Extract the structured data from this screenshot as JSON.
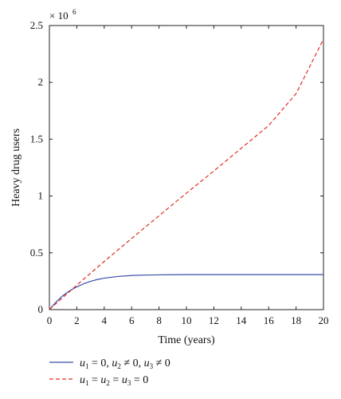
{
  "chart_data": {
    "type": "line",
    "xlabel": "Time (years)",
    "ylabel": "Heavy drug users",
    "y_multiplier": "× 10^6",
    "xlim": [
      0,
      20
    ],
    "ylim": [
      0,
      2.5
    ],
    "x_ticks": [
      0,
      2,
      4,
      6,
      8,
      10,
      12,
      14,
      16,
      18,
      20
    ],
    "y_ticks": [
      0,
      0.5,
      1,
      1.5,
      2,
      2.5
    ],
    "x_tick_labels": [
      "0",
      "2",
      "4",
      "6",
      "8",
      "10",
      "12",
      "14",
      "16",
      "18",
      "20"
    ],
    "y_tick_labels": [
      "0",
      "0.5",
      "1",
      "1.5",
      "2",
      "2.5"
    ],
    "grid": false,
    "legend_placement": "bottom",
    "x": [
      0,
      0.25,
      0.5,
      0.75,
      1,
      1.5,
      2,
      2.5,
      3,
      3.5,
      4,
      5,
      6,
      7,
      8,
      9,
      10,
      12,
      14,
      16,
      18,
      20
    ],
    "series": [
      {
        "legend": "u1 = 0, u2 ≠ 0, u3 ≠ 0",
        "color": "#3b4fa8",
        "style": "solid",
        "values": [
          0,
          0.035,
          0.068,
          0.098,
          0.125,
          0.168,
          0.2,
          0.228,
          0.249,
          0.265,
          0.277,
          0.292,
          0.3,
          0.304,
          0.306,
          0.307,
          0.308,
          0.308,
          0.308,
          0.308,
          0.308,
          0.308
        ]
      },
      {
        "legend": "u1 = u2 = u3 = 0",
        "color": "#e03020",
        "style": "dashed",
        "values": [
          0,
          0.028,
          0.055,
          0.082,
          0.11,
          0.162,
          0.215,
          0.268,
          0.32,
          0.372,
          0.424,
          0.525,
          0.626,
          0.726,
          0.826,
          0.926,
          1.025,
          1.22,
          1.42,
          1.62,
          1.9,
          2.38
        ]
      }
    ]
  }
}
